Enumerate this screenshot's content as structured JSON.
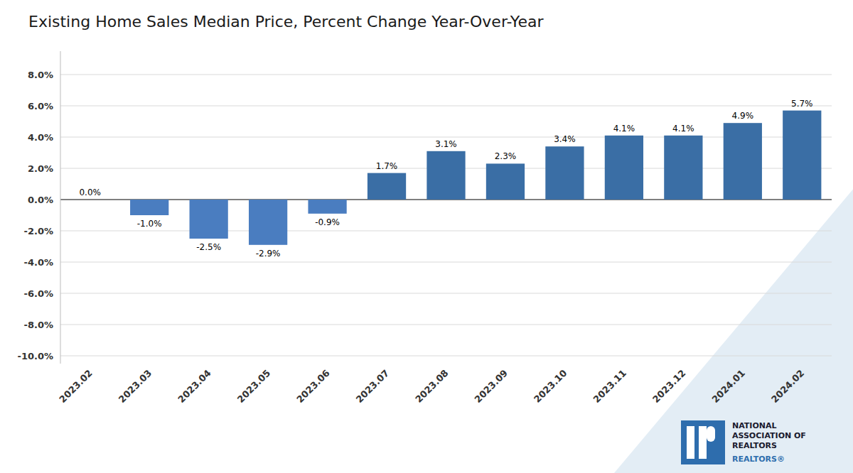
{
  "chart_data": {
    "type": "bar",
    "title": "Existing Home Sales Median Price, Percent Change Year-Over-Year",
    "categories": [
      "2023.02",
      "2023.03",
      "2023.04",
      "2023.05",
      "2023.06",
      "2023.07",
      "2023.08",
      "2023.09",
      "2023.10",
      "2023.11",
      "2023.12",
      "2024.01",
      "2024.02"
    ],
    "values": [
      0.0,
      -1.0,
      -2.5,
      -2.9,
      -0.9,
      1.7,
      3.1,
      2.3,
      3.4,
      4.1,
      4.1,
      4.9,
      5.7
    ],
    "value_labels": [
      "0.0%",
      "-1.0%",
      "-2.5%",
      "-2.9%",
      "-0.9%",
      "1.7%",
      "3.1%",
      "2.3%",
      "3.4%",
      "4.1%",
      "4.1%",
      "4.9%",
      "5.7%"
    ],
    "data_labels": true,
    "colors": [
      "#3A6EA5",
      "#4A7DC0",
      "#4A7DC0",
      "#4A7DC0",
      "#4A7DC0",
      "#3A6EA5",
      "#3A6EA5",
      "#3A6EA5",
      "#3A6EA5",
      "#3A6EA5",
      "#3A6EA5",
      "#3A6EA5",
      "#3A6EA5"
    ],
    "ylim": [
      -10.5,
      9.5
    ],
    "yticks": [
      {
        "value": -10.0,
        "label": "-10.0%"
      },
      {
        "value": -8.0,
        "label": "-8.0%"
      },
      {
        "value": -6.0,
        "label": "-6.0%"
      },
      {
        "value": -4.0,
        "label": "-4.0%"
      },
      {
        "value": -2.0,
        "label": "-2.0%"
      },
      {
        "value": 0.0,
        "label": "0.0%"
      },
      {
        "value": 2.0,
        "label": "2.0%"
      },
      {
        "value": 4.0,
        "label": "4.0%"
      },
      {
        "value": 6.0,
        "label": "6.0%"
      },
      {
        "value": 8.0,
        "label": "8.0%"
      }
    ],
    "grid": true,
    "annotations": [
      "NATIONAL\nASSOCIATION OF\nREALTORS",
      "REALTORS®"
    ]
  }
}
